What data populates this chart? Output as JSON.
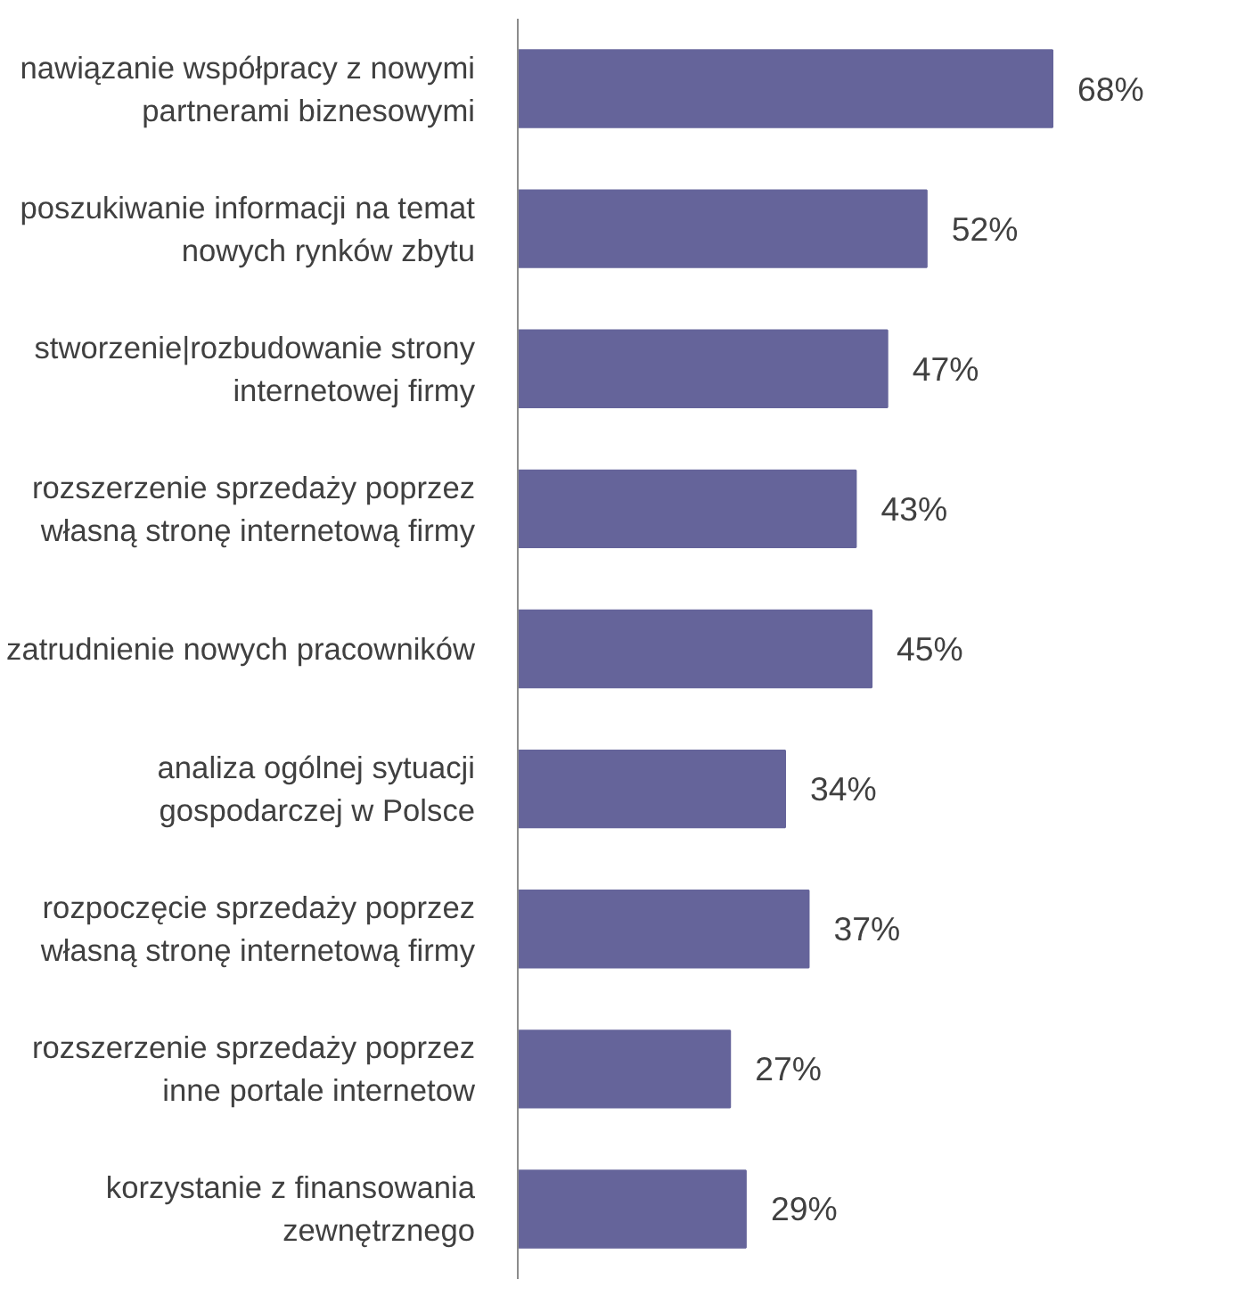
{
  "chart_data": {
    "type": "bar",
    "orientation": "horizontal",
    "categories": [
      "nawiązanie współpracy z nowymi partnerami biznesowymi",
      "poszukiwanie informacji na temat nowych rynków zbytu",
      "stworzenie|rozbudowanie strony internetowej firmy",
      "rozszerzenie sprzedaży poprzez własną stronę internetową firmy",
      "zatrudnienie nowych pracowników",
      "analiza ogólnej sytuacji gospodarczej w Polsce",
      "rozpoczęcie sprzedaży poprzez własną stronę internetową firmy",
      "rozszerzenie sprzedaży poprzez inne portale internetow",
      "korzystanie z finansowania zewnętrznego"
    ],
    "values": [
      68,
      52,
      47,
      43,
      45,
      34,
      37,
      27,
      29
    ],
    "value_labels": [
      "68%",
      "52%",
      "47%",
      "43%",
      "45%",
      "34%",
      "37%",
      "27%",
      "29%"
    ],
    "color": "#65649a",
    "grid": false,
    "tick_labels": "y"
  }
}
